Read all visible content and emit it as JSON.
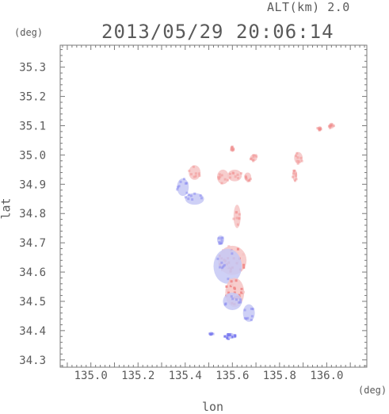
{
  "header": {
    "altitude": "ALT(km) 2.0",
    "timestamp": "2013/05/29 20:06:14"
  },
  "chart_data": {
    "type": "scatter",
    "xlabel": "lon",
    "ylabel": "lat",
    "x_unit": "(deg)",
    "y_unit": "(deg)",
    "xlim": [
      134.87,
      136.17
    ],
    "ylim": [
      34.275,
      35.375
    ],
    "x_ticks": [
      "135.0",
      "135.2",
      "135.4",
      "135.6",
      "135.8",
      "136.0"
    ],
    "y_ticks": [
      "34.3",
      "34.4",
      "34.5",
      "34.6",
      "34.7",
      "34.8",
      "34.9",
      "35.0",
      "35.1",
      "35.2",
      "35.3"
    ],
    "grid": false,
    "colors": {
      "positive": "#f08a8a",
      "positive_light": "#f6c4c4",
      "negative": "#7b7bf0",
      "negative_light": "#c6c8f4",
      "axis": "#7a7a7a"
    },
    "clusters": [
      {
        "lon": 135.56,
        "lat": 34.925,
        "rx": 0.025,
        "ry": 0.025,
        "sign": "positive",
        "strength": "light"
      },
      {
        "lon": 135.61,
        "lat": 34.93,
        "rx": 0.03,
        "ry": 0.02,
        "sign": "positive",
        "strength": "light"
      },
      {
        "lon": 135.665,
        "lat": 34.925,
        "rx": 0.015,
        "ry": 0.015,
        "sign": "positive",
        "strength": "light"
      },
      {
        "lon": 135.6,
        "lat": 35.02,
        "rx": 0.008,
        "ry": 0.01,
        "sign": "positive",
        "strength": "light"
      },
      {
        "lon": 135.69,
        "lat": 34.99,
        "rx": 0.015,
        "ry": 0.012,
        "sign": "positive",
        "strength": "light"
      },
      {
        "lon": 135.88,
        "lat": 34.99,
        "rx": 0.018,
        "ry": 0.02,
        "sign": "positive",
        "strength": "light"
      },
      {
        "lon": 135.865,
        "lat": 34.93,
        "rx": 0.01,
        "ry": 0.02,
        "sign": "positive",
        "strength": "light"
      },
      {
        "lon": 135.97,
        "lat": 35.09,
        "rx": 0.01,
        "ry": 0.008,
        "sign": "positive",
        "strength": "light"
      },
      {
        "lon": 136.02,
        "lat": 35.1,
        "rx": 0.012,
        "ry": 0.01,
        "sign": "positive",
        "strength": "light"
      },
      {
        "lon": 135.44,
        "lat": 34.94,
        "rx": 0.025,
        "ry": 0.025,
        "sign": "positive",
        "strength": "light"
      },
      {
        "lon": 135.39,
        "lat": 34.89,
        "rx": 0.025,
        "ry": 0.03,
        "sign": "negative",
        "strength": "light"
      },
      {
        "lon": 135.44,
        "lat": 34.85,
        "rx": 0.04,
        "ry": 0.02,
        "sign": "negative",
        "strength": "light"
      },
      {
        "lon": 135.62,
        "lat": 34.79,
        "rx": 0.015,
        "ry": 0.04,
        "sign": "positive",
        "strength": "light"
      },
      {
        "lon": 135.55,
        "lat": 34.71,
        "rx": 0.015,
        "ry": 0.015,
        "sign": "negative",
        "strength": "light"
      },
      {
        "lon": 135.6,
        "lat": 34.64,
        "rx": 0.06,
        "ry": 0.05,
        "sign": "positive",
        "strength": "strong"
      },
      {
        "lon": 135.58,
        "lat": 34.62,
        "rx": 0.06,
        "ry": 0.06,
        "sign": "negative",
        "strength": "light"
      },
      {
        "lon": 135.61,
        "lat": 34.53,
        "rx": 0.04,
        "ry": 0.05,
        "sign": "positive",
        "strength": "strong"
      },
      {
        "lon": 135.6,
        "lat": 34.5,
        "rx": 0.04,
        "ry": 0.03,
        "sign": "negative",
        "strength": "light"
      },
      {
        "lon": 135.67,
        "lat": 34.46,
        "rx": 0.025,
        "ry": 0.03,
        "sign": "negative",
        "strength": "light"
      },
      {
        "lon": 135.59,
        "lat": 34.38,
        "rx": 0.025,
        "ry": 0.008,
        "sign": "negative",
        "strength": "strong"
      },
      {
        "lon": 135.51,
        "lat": 34.39,
        "rx": 0.01,
        "ry": 0.006,
        "sign": "negative",
        "strength": "light"
      }
    ]
  }
}
